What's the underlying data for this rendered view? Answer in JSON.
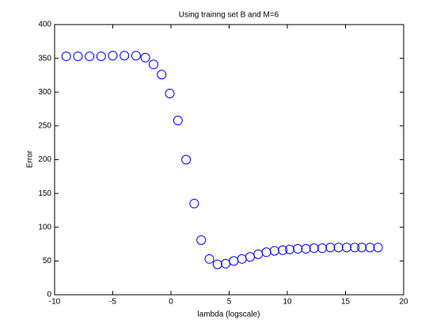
{
  "chart_data": {
    "type": "scatter",
    "title": "Using trainng set B and M=6",
    "xlabel": "lambda (logscale)",
    "ylabel": "Error",
    "series": [
      {
        "color": "#0000ff",
        "x": [
          -9,
          -8,
          -7,
          -6,
          -5,
          -4,
          -3,
          -2.2,
          -1.5,
          -0.8,
          -0.1,
          0.6,
          1.3,
          2.0,
          2.6,
          3.3,
          4.0,
          4.7,
          5.4,
          6.1,
          6.8,
          7.5,
          8.2,
          8.9,
          9.6,
          10.2,
          10.9,
          11.6,
          12.3,
          13.0,
          13.7,
          14.4,
          15.1,
          15.8,
          16.4,
          17.1,
          17.8
        ],
        "values": [
          353,
          353,
          353,
          353,
          354,
          354,
          354,
          351,
          341,
          326,
          298,
          258,
          200,
          135,
          81,
          53,
          45,
          46,
          50,
          53,
          56,
          60,
          63,
          65,
          66,
          67,
          68,
          68,
          69,
          69,
          70,
          70,
          70,
          70,
          70,
          70,
          70
        ]
      }
    ],
    "xlim": [
      -10,
      20
    ],
    "xticks": [
      -10,
      -5,
      0,
      5,
      10,
      15,
      20
    ],
    "ylim": [
      0,
      400
    ],
    "yticks": [
      0,
      50,
      100,
      150,
      200,
      250,
      300,
      350,
      400
    ],
    "grid": false
  }
}
